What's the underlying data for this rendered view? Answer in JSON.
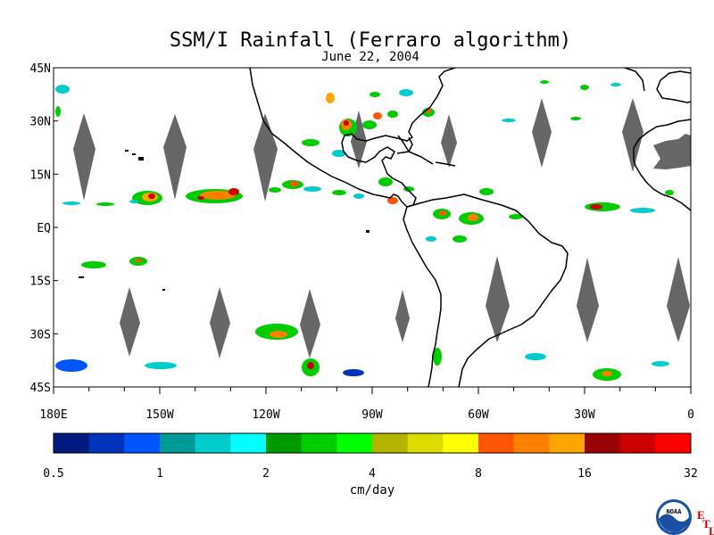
{
  "title": "SSM/I Rainfall (Ferraro algorithm)",
  "subtitle": "June 22, 2004",
  "map": {
    "lon_range": [
      180,
      360
    ],
    "lat_range": [
      -45,
      45
    ],
    "lat_ticks": [
      {
        "value": 45,
        "label": "45N"
      },
      {
        "value": 30,
        "label": "30N"
      },
      {
        "value": 15,
        "label": "15N"
      },
      {
        "value": 0,
        "label": "EQ"
      },
      {
        "value": -15,
        "label": "15S"
      },
      {
        "value": -30,
        "label": "30S"
      },
      {
        "value": -45,
        "label": "45S"
      }
    ],
    "lon_ticks": [
      {
        "value": 180,
        "label": "180E"
      },
      {
        "value": 210,
        "label": "150W"
      },
      {
        "value": 240,
        "label": "120W"
      },
      {
        "value": 270,
        "label": "90W"
      },
      {
        "value": 300,
        "label": "60W"
      },
      {
        "value": 330,
        "label": "30W"
      },
      {
        "value": 360,
        "label": "0"
      }
    ]
  },
  "colorbar": {
    "unit_label": "cm/day",
    "tick_labels": [
      "0.5",
      "1",
      "2",
      "4",
      "8",
      "16",
      "32"
    ],
    "colors": [
      "#001a80",
      "#0033bb",
      "#0055ff",
      "#009999",
      "#00cccc",
      "#00ffff",
      "#009900",
      "#00cc00",
      "#00ff00",
      "#b3b300",
      "#dddd00",
      "#ffff00",
      "#ff5500",
      "#ff8000",
      "#ffa500",
      "#990000",
      "#cc0000",
      "#ff0000"
    ]
  },
  "logo": {
    "text": "NOAA",
    "side_letters": [
      "E",
      "T",
      "L"
    ]
  },
  "colors": {
    "land_outline": "#000000",
    "missing_data": "#666666"
  }
}
